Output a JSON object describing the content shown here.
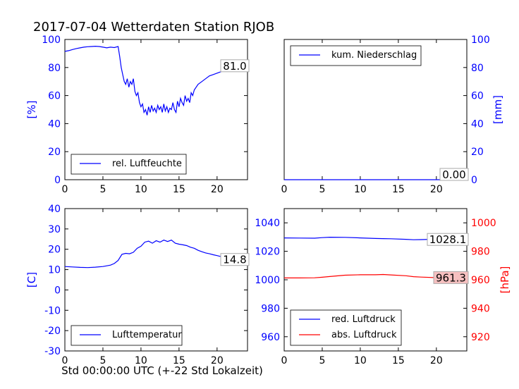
{
  "figure_title": "2017-07-04 Wetterdaten Station RJOB",
  "footer_xlabel": "Std 00:00:00 UTC (+-22 Std Lokalzeit)",
  "colors": {
    "blue": "#0000ff",
    "red": "#ff0000",
    "black": "#000000"
  },
  "chart_data": [
    {
      "type": "line",
      "panel": "top-left",
      "x": [
        0,
        0.5,
        1,
        1.5,
        2,
        2.5,
        3,
        3.5,
        4,
        4.5,
        5,
        5.5,
        6,
        6.5,
        7,
        7.2,
        7.4,
        7.6,
        7.8,
        8,
        8.2,
        8.4,
        8.6,
        8.8,
        9,
        9.2,
        9.4,
        9.6,
        9.8,
        10,
        10.2,
        10.4,
        10.6,
        10.8,
        11,
        11.2,
        11.4,
        11.6,
        11.8,
        12,
        12.2,
        12.4,
        12.6,
        12.8,
        13,
        13.2,
        13.4,
        13.6,
        13.8,
        14,
        14.2,
        14.4,
        14.6,
        14.8,
        15,
        15.2,
        15.4,
        15.6,
        15.8,
        16,
        16.2,
        16.4,
        16.6,
        16.8,
        17,
        17.5,
        18,
        18.5,
        19,
        19.5,
        20,
        20.5,
        21,
        21.5,
        22,
        22.5,
        23,
        23.5,
        24
      ],
      "series": [
        {
          "name": "rel. Luftfeuchte",
          "color": "#0000ff",
          "axis": "left",
          "values": [
            91.5,
            92,
            92.8,
            93.5,
            94,
            94.5,
            94.8,
            95,
            95.2,
            95,
            94.5,
            94,
            94.5,
            94.2,
            95,
            88,
            80,
            75,
            70,
            68,
            72,
            66,
            70,
            68,
            72,
            63,
            60,
            62,
            55,
            52,
            54,
            48,
            50,
            46,
            52,
            48,
            53,
            49,
            51,
            48,
            53,
            50,
            52,
            48,
            54,
            49,
            52,
            48,
            51,
            50,
            55,
            50,
            48,
            56,
            52,
            58,
            55,
            53,
            60,
            56,
            58,
            55,
            62,
            60,
            64,
            68,
            70,
            72,
            74,
            75,
            76,
            77,
            78,
            79,
            79.5,
            80,
            80.5,
            80.8,
            81
          ]
        }
      ],
      "legend": {
        "labels": [
          "rel. Luftfeuchte"
        ],
        "placement": "lower-left"
      },
      "annotation": "81.0",
      "xlim": [
        0,
        24
      ],
      "xticks": [
        0,
        5,
        10,
        15,
        20
      ],
      "ylim": [
        0,
        100
      ],
      "yticks": [
        0,
        20,
        40,
        60,
        80,
        100
      ],
      "ylabel": "[%]"
    },
    {
      "type": "line",
      "panel": "top-right",
      "x": [
        0,
        24
      ],
      "series": [
        {
          "name": "kum. Niederschlag",
          "color": "#0000ff",
          "axis": "right",
          "values": [
            0,
            0
          ]
        }
      ],
      "legend": {
        "labels": [
          "kum. Niederschlag"
        ],
        "placement": "upper-left"
      },
      "annotation": "0.00",
      "xlim": [
        0,
        24
      ],
      "xticks": [
        0,
        5,
        10,
        15,
        20
      ],
      "ylim": [
        0,
        100
      ],
      "yticks": [
        0,
        20,
        40,
        60,
        80,
        100
      ],
      "ylabel": "[mm]"
    },
    {
      "type": "line",
      "panel": "bottom-left",
      "x": [
        0,
        1,
        2,
        3,
        4,
        5,
        6,
        6.5,
        7,
        7.5,
        8,
        8.5,
        9,
        9.5,
        10,
        10.5,
        11,
        11.5,
        12,
        12.5,
        13,
        13.5,
        14,
        14.5,
        15,
        15.5,
        16,
        16.5,
        17,
        17.5,
        18,
        18.5,
        19,
        19.5,
        20,
        20.5,
        21,
        21.5,
        22,
        22.5,
        23,
        23.5,
        24
      ],
      "series": [
        {
          "name": "Lufttemperatur",
          "color": "#0000ff",
          "axis": "left",
          "values": [
            11.5,
            11.3,
            11.1,
            11,
            11.2,
            11.5,
            12.2,
            13,
            14.5,
            17.5,
            18,
            17.8,
            18.5,
            20.5,
            21.5,
            23.5,
            24,
            23,
            24.2,
            23.5,
            24.5,
            23.8,
            24.5,
            23,
            22.5,
            22.2,
            21.8,
            21,
            20.5,
            19.5,
            18.8,
            18.2,
            17.8,
            17.3,
            16.9,
            16.4,
            16,
            15.6,
            15.3,
            15,
            14.9,
            14.8,
            14.8
          ]
        }
      ],
      "legend": {
        "labels": [
          "Lufttemperatur"
        ],
        "placement": "lower-left"
      },
      "annotation": "14.8",
      "xlim": [
        0,
        24
      ],
      "xticks": [
        0,
        5,
        10,
        15,
        20
      ],
      "ylim": [
        -30,
        40
      ],
      "yticks": [
        -30,
        -20,
        -10,
        0,
        10,
        20,
        30,
        40
      ],
      "ylabel": "[C]"
    },
    {
      "type": "line",
      "panel": "bottom-right",
      "x": [
        0,
        2,
        4,
        5,
        6,
        8,
        10,
        12,
        13,
        14,
        16,
        17,
        18,
        20,
        22,
        24
      ],
      "series": [
        {
          "name": "red. Luftdruck",
          "color": "#0000ff",
          "axis": "left",
          "values": [
            1029.4,
            1029.3,
            1029.2,
            1029.6,
            1029.9,
            1029.8,
            1029.4,
            1029,
            1028.9,
            1028.8,
            1028.4,
            1028.1,
            1028.2,
            1028.5,
            1028.4,
            1028.1
          ]
        },
        {
          "name": "abs. Luftdruck",
          "color": "#ff0000",
          "axis": "right",
          "values": [
            961.3,
            961.3,
            961.4,
            961.8,
            962.3,
            963.2,
            963.5,
            963.5,
            963.7,
            963.4,
            962.8,
            962.2,
            961.9,
            961.5,
            961.4,
            961.3
          ]
        }
      ],
      "legend": {
        "labels": [
          "red. Luftdruck",
          "abs. Luftdruck"
        ],
        "placement": "lower-left"
      },
      "annotations": [
        "1028.1",
        "961.3"
      ],
      "xlim": [
        0,
        24
      ],
      "xticks": [
        0,
        5,
        10,
        15,
        20
      ],
      "ylim_left": [
        950,
        1050
      ],
      "yticks_left": [
        960,
        980,
        1000,
        1020,
        1040
      ],
      "ylim_right": [
        910,
        1010
      ],
      "yticks_right": [
        920,
        940,
        960,
        980,
        1000
      ],
      "ylabel_right": "[hPa]"
    }
  ]
}
